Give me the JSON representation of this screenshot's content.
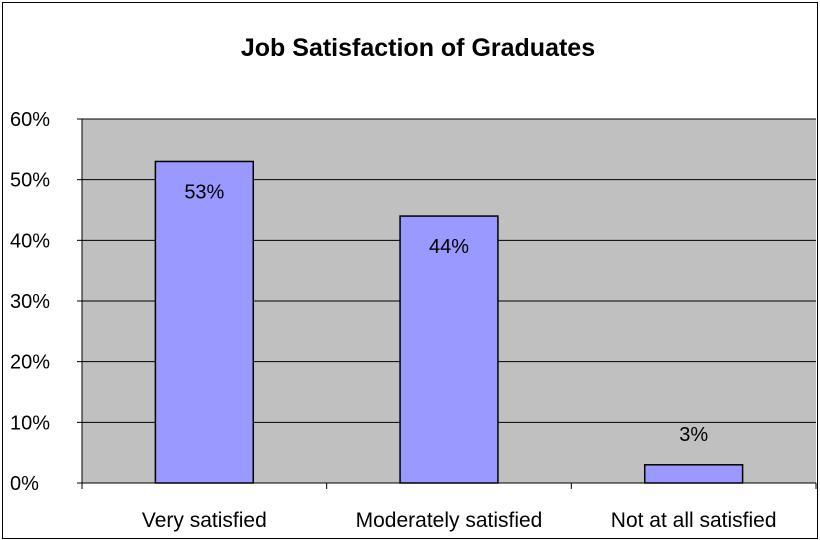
{
  "chart_data": {
    "type": "bar",
    "title": "Job Satisfaction of Graduates",
    "categories": [
      "Very satisfied",
      "Moderately satisfied",
      "Not at all satisfied"
    ],
    "values": [
      53,
      44,
      3
    ],
    "data_labels": [
      "53%",
      "44%",
      "3%"
    ],
    "ylim": [
      0,
      60
    ],
    "y_ticks": [
      0,
      10,
      20,
      30,
      40,
      50,
      60
    ],
    "y_tick_labels": [
      "0%",
      "10%",
      "20%",
      "30%",
      "40%",
      "50%",
      "60%"
    ],
    "xlabel": "",
    "ylabel": "",
    "grid": true,
    "legend": "none",
    "colors": {
      "plot_background": "#c0c0c0",
      "bar_fill": "#9999ff",
      "bar_stroke": "#000000",
      "gridline": "#000000"
    }
  }
}
